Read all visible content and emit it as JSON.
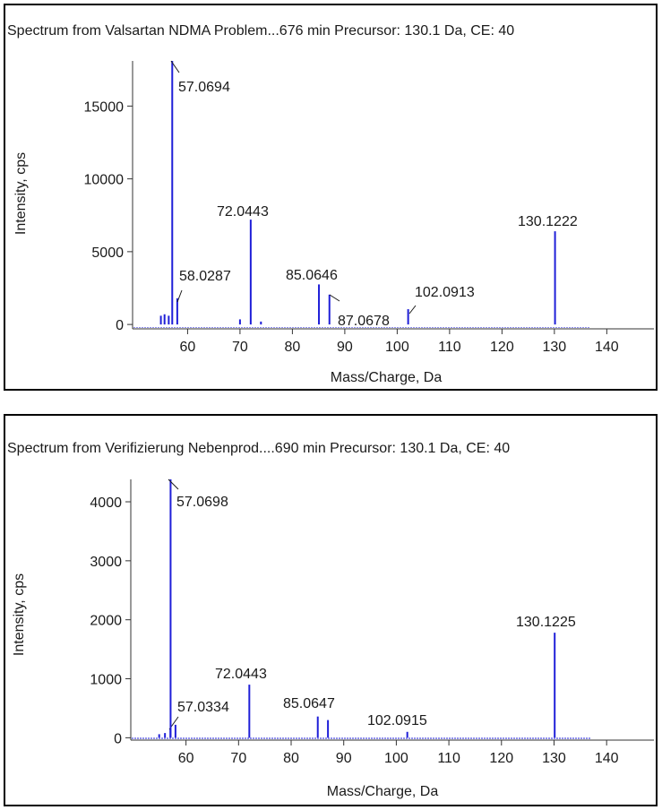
{
  "chart_data": [
    {
      "type": "bar",
      "title": "Spectrum from Valsartan NDMA Problem...676 min Precursor: 130.1 Da, CE: 40",
      "xlabel": "Mass/Charge, Da",
      "ylabel": "Intensity, cps",
      "xlim": [
        49.5,
        149
      ],
      "ylim": [
        -300,
        18100
      ],
      "xticks": [
        60,
        70,
        80,
        90,
        100,
        110,
        120,
        130,
        140
      ],
      "yticks": [
        0,
        5000,
        10000,
        15000
      ],
      "grid": false,
      "legend": "none",
      "color": "#1f1fd8",
      "peaks": [
        {
          "mz": 54.9,
          "intensity": 600
        },
        {
          "mz": 55.6,
          "intensity": 700
        },
        {
          "mz": 56.4,
          "intensity": 600
        },
        {
          "mz": 57.0694,
          "intensity": 18100,
          "label": "57.0694"
        },
        {
          "mz": 58.0287,
          "intensity": 1800,
          "label": "58.0287"
        },
        {
          "mz": 70.0,
          "intensity": 350
        },
        {
          "mz": 72.0443,
          "intensity": 7200,
          "label": "72.0443"
        },
        {
          "mz": 74.0,
          "intensity": 200
        },
        {
          "mz": 85.0646,
          "intensity": 2750,
          "label": "85.0646"
        },
        {
          "mz": 87.0678,
          "intensity": 2050,
          "label": "87.0678"
        },
        {
          "mz": 102.0913,
          "intensity": 1050,
          "label": "102.0913"
        },
        {
          "mz": 130.1222,
          "intensity": 6400,
          "label": "130.1222"
        }
      ]
    },
    {
      "type": "bar",
      "title": "Spectrum from Verifizierung Nebenprod....690 min Precursor: 130.1 Da, CE: 40",
      "xlabel": "Mass/Charge, Da",
      "ylabel": "Intensity, cps",
      "xlim": [
        49.5,
        149
      ],
      "ylim": [
        -40,
        4380
      ],
      "xticks": [
        60,
        70,
        80,
        90,
        100,
        110,
        120,
        130,
        140
      ],
      "yticks": [
        0,
        1000,
        2000,
        3000,
        4000
      ],
      "grid": false,
      "legend": "none",
      "color": "#1f1fd8",
      "peaks": [
        {
          "mz": 54.9,
          "intensity": 60
        },
        {
          "mz": 56.0,
          "intensity": 80
        },
        {
          "mz": 57.0334,
          "intensity": 150,
          "label": "57.0334"
        },
        {
          "mz": 57.0698,
          "intensity": 4380,
          "label": "57.0698"
        },
        {
          "mz": 58.0,
          "intensity": 220
        },
        {
          "mz": 72.0443,
          "intensity": 900,
          "label": "72.0443"
        },
        {
          "mz": 85.0647,
          "intensity": 360,
          "label": "85.0647"
        },
        {
          "mz": 87.0,
          "intensity": 300
        },
        {
          "mz": 102.0915,
          "intensity": 100,
          "label": "102.0915"
        },
        {
          "mz": 130.1225,
          "intensity": 1780,
          "label": "130.1225"
        }
      ]
    }
  ]
}
